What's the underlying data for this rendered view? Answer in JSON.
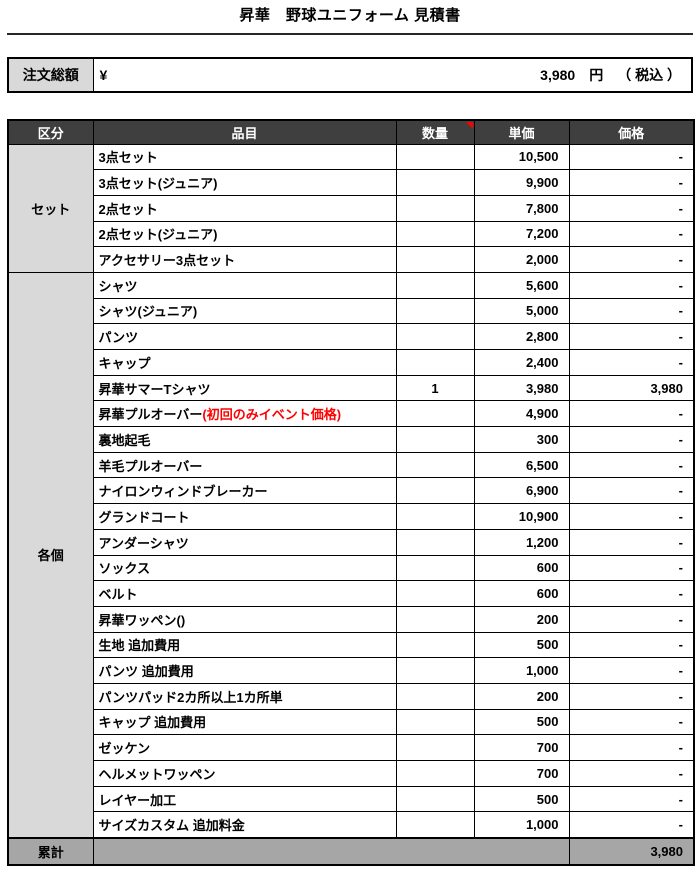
{
  "title": "昇華　野球ユニフォーム 見積書",
  "order_total": {
    "label": "注文総額",
    "currency_symbol": "¥",
    "amount": "3,980",
    "unit": "円",
    "tax_note": "（ 税込 ）"
  },
  "table": {
    "headers": {
      "category": "区分",
      "item": "品目",
      "quantity": "数量",
      "unit_price": "単価",
      "price": "価格"
    },
    "quantity_comment_indicator": "red-triangle",
    "groups": [
      {
        "category": "セット",
        "rows": [
          {
            "item": "3点セット",
            "quantity": "",
            "unit_price": "10,500",
            "price": "-"
          },
          {
            "item": "3点セット(ジュニア)",
            "quantity": "",
            "unit_price": "9,900",
            "price": "-"
          },
          {
            "item": "2点セット",
            "quantity": "",
            "unit_price": "7,800",
            "price": "-"
          },
          {
            "item": "2点セット(ジュニア)",
            "quantity": "",
            "unit_price": "7,200",
            "price": "-"
          },
          {
            "item": "アクセサリー3点セット",
            "quantity": "",
            "unit_price": "2,000",
            "price": "-"
          }
        ]
      },
      {
        "category": "各個",
        "rows": [
          {
            "item": "シャツ",
            "quantity": "",
            "unit_price": "5,600",
            "price": "-"
          },
          {
            "item": "シャツ(ジュニア)",
            "quantity": "",
            "unit_price": "5,000",
            "price": "-"
          },
          {
            "item": "パンツ",
            "quantity": "",
            "unit_price": "2,800",
            "price": "-"
          },
          {
            "item": "キャップ",
            "quantity": "",
            "unit_price": "2,400",
            "price": "-"
          },
          {
            "item": "昇華サマーTシャツ",
            "quantity": "1",
            "unit_price": "3,980",
            "price": "3,980"
          },
          {
            "item": "昇華プルオーバー",
            "item_note": "(初回のみイベント価格)",
            "quantity": "",
            "unit_price": "4,900",
            "price": "-"
          },
          {
            "item": "裏地起毛",
            "quantity": "",
            "unit_price": "300",
            "price": "-"
          },
          {
            "item": "羊毛プルオーバー",
            "quantity": "",
            "unit_price": "6,500",
            "price": "-"
          },
          {
            "item": "ナイロンウィンドブレーカー",
            "quantity": "",
            "unit_price": "6,900",
            "price": "-"
          },
          {
            "item": "グランドコート",
            "quantity": "",
            "unit_price": "10,900",
            "price": "-"
          },
          {
            "item": "アンダーシャツ",
            "quantity": "",
            "unit_price": "1,200",
            "price": "-"
          },
          {
            "item": "ソックス",
            "quantity": "",
            "unit_price": "600",
            "price": "-"
          },
          {
            "item": "ベルト",
            "quantity": "",
            "unit_price": "600",
            "price": "-"
          },
          {
            "item": "昇華ワッペン()",
            "quantity": "",
            "unit_price": "200",
            "price": "-"
          },
          {
            "item": "生地 追加費用",
            "quantity": "",
            "unit_price": "500",
            "price": "-"
          },
          {
            "item": "パンツ 追加費用",
            "quantity": "",
            "unit_price": "1,000",
            "price": "-"
          },
          {
            "item": "パンツパッド2カ所以上1カ所単",
            "quantity": "",
            "unit_price": "200",
            "price": "-"
          },
          {
            "item": "キャップ 追加費用",
            "quantity": "",
            "unit_price": "500",
            "price": "-"
          },
          {
            "item": "ゼッケン",
            "quantity": "",
            "unit_price": "700",
            "price": "-"
          },
          {
            "item": "ヘルメットワッペン",
            "quantity": "",
            "unit_price": "700",
            "price": "-"
          },
          {
            "item": "レイヤー加工",
            "quantity": "",
            "unit_price": "500",
            "price": "-"
          },
          {
            "item": "サイズカスタム 追加料金",
            "quantity": "",
            "unit_price": "1,000",
            "price": "-"
          }
        ]
      }
    ],
    "footer": {
      "label": "累計",
      "total": "3,980"
    }
  },
  "colors": {
    "header_bg": "#3f3f3f",
    "header_text": "#ffffff",
    "category_bg": "#d9d9d9",
    "footer_bg": "#a6a6a6",
    "border": "#000000",
    "note_red": "#ff0000",
    "comment_marker_red": "#ff0000"
  }
}
